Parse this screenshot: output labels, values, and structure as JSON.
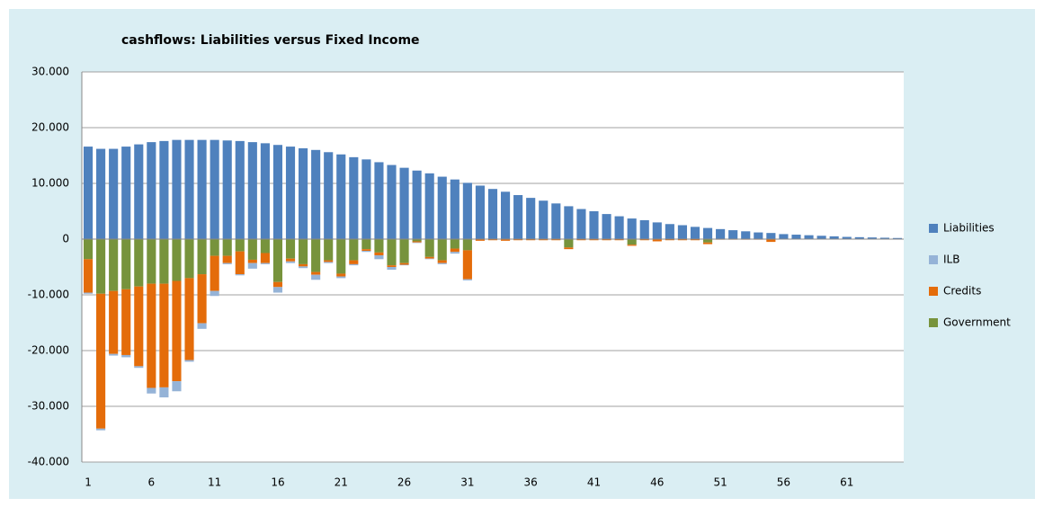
{
  "chart_data": {
    "type": "stacked-bar",
    "title": "cashflows: Liabilities versus Fixed Income",
    "categories": [
      "1",
      null,
      null,
      null,
      null,
      "6",
      null,
      null,
      null,
      null,
      "11",
      null,
      null,
      null,
      null,
      "16",
      null,
      null,
      null,
      null,
      "21",
      null,
      null,
      null,
      null,
      "26",
      null,
      null,
      null,
      null,
      "31",
      null,
      null,
      null,
      null,
      "36",
      null,
      null,
      null,
      null,
      "41",
      null,
      null,
      null,
      null,
      "46",
      null,
      null,
      null,
      null,
      "51",
      null,
      null,
      null,
      null,
      "56",
      null,
      null,
      null,
      null,
      "61",
      null,
      null,
      null,
      null
    ],
    "series": [
      {
        "name": "Liabilities",
        "color": "#4f81bd",
        "values": [
          16600,
          16200,
          16200,
          16600,
          17000,
          17400,
          17600,
          17800,
          17800,
          17800,
          17800,
          17700,
          17600,
          17400,
          17200,
          16900,
          16600,
          16300,
          16000,
          15600,
          15200,
          14700,
          14300,
          13800,
          13300,
          12800,
          12300,
          11800,
          11200,
          10700,
          10100,
          9600,
          9000,
          8500,
          7900,
          7400,
          6900,
          6400,
          5900,
          5400,
          5000,
          4500,
          4100,
          3700,
          3400,
          3000,
          2700,
          2500,
          2200,
          2000,
          1800,
          1600,
          1400,
          1200,
          1100,
          900,
          800,
          700,
          600,
          500,
          400,
          350,
          300,
          250,
          200
        ]
      },
      {
        "name": "ILB",
        "color": "#95b3d7",
        "values": [
          -200,
          -300,
          -300,
          -400,
          -300,
          -1000,
          -1800,
          -1800,
          -300,
          -1000,
          -900,
          -200,
          -200,
          -1000,
          -200,
          -1000,
          -300,
          -300,
          -900,
          -200,
          -300,
          -200,
          -200,
          -700,
          -500,
          -100,
          -100,
          -100,
          -200,
          -300,
          -200,
          0,
          0,
          0,
          0,
          0,
          0,
          0,
          0,
          0,
          0,
          0,
          0,
          0,
          0,
          0,
          0,
          0,
          0,
          0,
          0,
          0,
          0,
          0,
          0,
          0,
          0,
          0,
          0,
          0,
          0,
          0,
          0,
          0,
          0
        ]
      },
      {
        "name": "Credits",
        "color": "#e46c0a",
        "values": [
          -6000,
          -24200,
          -11300,
          -11800,
          -14300,
          -18700,
          -18600,
          -18000,
          -14700,
          -8800,
          -6300,
          -1300,
          -4100,
          -600,
          -1800,
          -900,
          -500,
          -400,
          -500,
          -300,
          -500,
          -700,
          -300,
          -500,
          -300,
          -300,
          -200,
          -300,
          -500,
          -600,
          -5200,
          -300,
          -200,
          -300,
          -200,
          -200,
          -200,
          -200,
          -300,
          -200,
          -200,
          -200,
          -200,
          -200,
          -200,
          -400,
          -200,
          -200,
          -200,
          -300,
          -100,
          -100,
          -100,
          -100,
          -500,
          0,
          0,
          0,
          0,
          0,
          0,
          0,
          0,
          0,
          0
        ]
      },
      {
        "name": "Government",
        "color": "#77933c",
        "values": [
          -3600,
          -9800,
          -9300,
          -9000,
          -8500,
          -8000,
          -8000,
          -7500,
          -7000,
          -6300,
          -3000,
          -3000,
          -2200,
          -3700,
          -2500,
          -7700,
          -3500,
          -4500,
          -5900,
          -3800,
          -6200,
          -3800,
          -1800,
          -2400,
          -4700,
          -4300,
          -400,
          -3200,
          -3800,
          -1700,
          -2000,
          0,
          0,
          0,
          0,
          0,
          0,
          0,
          -1500,
          0,
          0,
          0,
          0,
          -1000,
          0,
          0,
          0,
          0,
          0,
          -600,
          0,
          0,
          0,
          0,
          0,
          0,
          0,
          0,
          0,
          0,
          0,
          0,
          0,
          0,
          0
        ]
      }
    ],
    "ylim": [
      -40000,
      30000
    ],
    "yticks": [
      {
        "value": -40000,
        "label": "-40.000"
      },
      {
        "value": -30000,
        "label": "-30.000"
      },
      {
        "value": -20000,
        "label": "-20.000"
      },
      {
        "value": -10000,
        "label": "-10.000"
      },
      0,
      {
        "value": 10000,
        "label": "10.000"
      },
      {
        "value": 20000,
        "label": "20.000"
      },
      {
        "value": 30000,
        "label": "30.000"
      }
    ],
    "grid": true,
    "legend": "right"
  }
}
